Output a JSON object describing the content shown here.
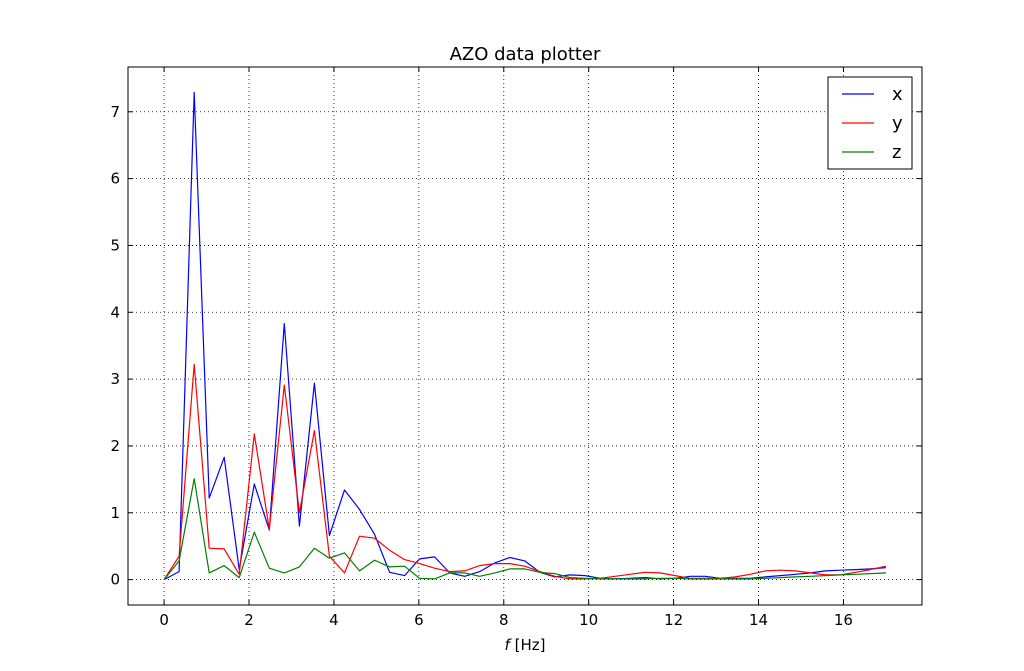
{
  "chart_data": {
    "type": "line",
    "title": "AZO data plotter",
    "xlabel_italic": "f",
    "xlabel_rest": " [Hz]",
    "ylabel": "",
    "xlim": [
      -0.85,
      17.85
    ],
    "ylim": [
      -0.38,
      7.67
    ],
    "xticks": [
      0,
      2,
      4,
      6,
      8,
      10,
      12,
      14,
      16
    ],
    "yticks": [
      0,
      1,
      2,
      3,
      4,
      5,
      6,
      7
    ],
    "grid": true,
    "legend_position": "top-right",
    "x": [
      0,
      0.354,
      0.708,
      1.062,
      1.416,
      1.77,
      2.124,
      2.478,
      2.832,
      3.186,
      3.54,
      3.894,
      4.248,
      4.602,
      4.956,
      5.31,
      5.664,
      6.018,
      6.372,
      6.726,
      7.08,
      7.434,
      7.788,
      8.142,
      8.496,
      8.85,
      9.204,
      9.558,
      9.912,
      10.266,
      10.62,
      10.974,
      11.328,
      11.682,
      12.036,
      12.39,
      12.744,
      13.098,
      13.452,
      13.806,
      14.16,
      14.514,
      14.868,
      15.222,
      15.576,
      15.93,
      16.284,
      16.638,
      17.0
    ],
    "series": [
      {
        "name": "x",
        "color": "#0000ff",
        "values": [
          0,
          0.12,
          7.29,
          1.22,
          1.83,
          0.15,
          1.43,
          0.74,
          3.83,
          0.8,
          2.94,
          0.66,
          1.34,
          1.05,
          0.68,
          0.11,
          0.06,
          0.31,
          0.34,
          0.1,
          0.05,
          0.12,
          0.25,
          0.33,
          0.28,
          0.11,
          0.04,
          0.07,
          0.06,
          0.02,
          0.01,
          0.02,
          0.03,
          0.01,
          0.02,
          0.05,
          0.05,
          0.02,
          0.02,
          0.02,
          0.04,
          0.06,
          0.08,
          0.1,
          0.13,
          0.14,
          0.15,
          0.16,
          0.18
        ]
      },
      {
        "name": "y",
        "color": "#ff0000",
        "values": [
          0,
          0.35,
          3.22,
          0.47,
          0.46,
          0.08,
          2.18,
          0.75,
          2.91,
          1.0,
          2.23,
          0.35,
          0.1,
          0.65,
          0.62,
          0.44,
          0.3,
          0.24,
          0.17,
          0.12,
          0.13,
          0.21,
          0.24,
          0.24,
          0.2,
          0.12,
          0.05,
          0.01,
          0.01,
          0.02,
          0.05,
          0.08,
          0.11,
          0.1,
          0.06,
          0.02,
          0.02,
          0.02,
          0.04,
          0.08,
          0.13,
          0.14,
          0.13,
          0.1,
          0.07,
          0.07,
          0.11,
          0.15,
          0.2
        ]
      },
      {
        "name": "z",
        "color": "#008000",
        "values": [
          0,
          0.28,
          1.51,
          0.1,
          0.21,
          0.03,
          0.71,
          0.17,
          0.1,
          0.19,
          0.47,
          0.32,
          0.4,
          0.13,
          0.29,
          0.19,
          0.2,
          0.02,
          0.01,
          0.1,
          0.1,
          0.05,
          0.1,
          0.16,
          0.16,
          0.11,
          0.09,
          0.03,
          0.02,
          0.01,
          0.01,
          0.01,
          0.01,
          0.02,
          0.02,
          0.01,
          0.01,
          0.01,
          0.01,
          0.01,
          0.02,
          0.03,
          0.04,
          0.05,
          0.06,
          0.07,
          0.08,
          0.09,
          0.1
        ]
      }
    ]
  }
}
